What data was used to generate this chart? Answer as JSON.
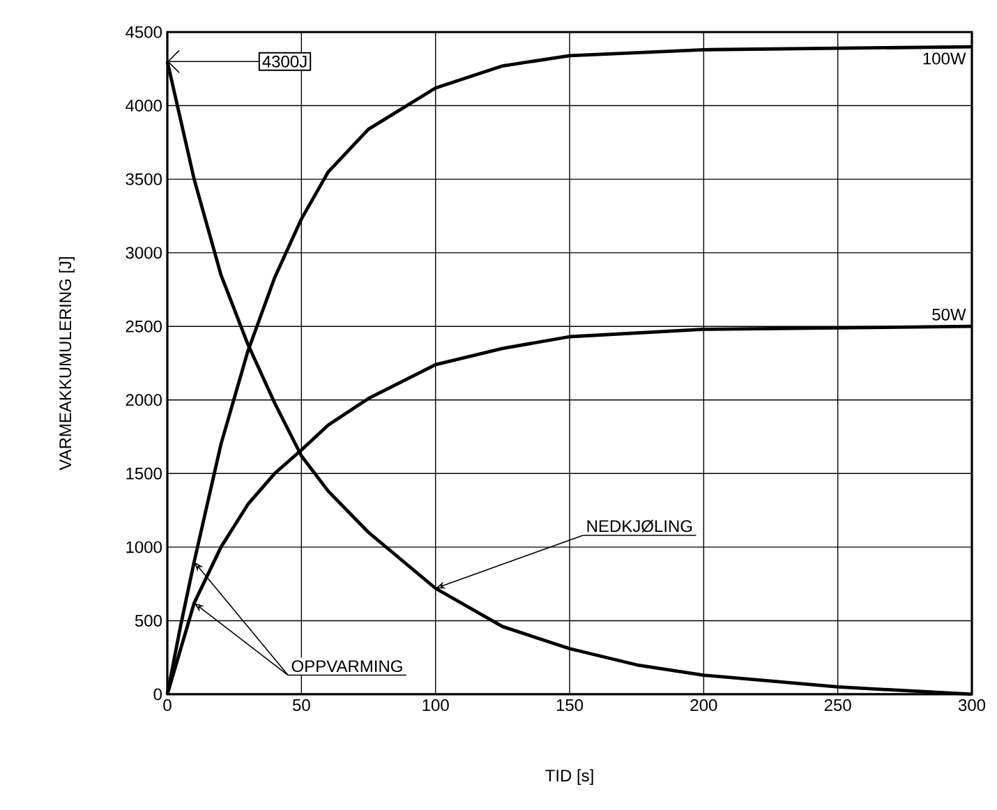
{
  "chart_data": {
    "type": "line",
    "xlabel": "TID [s]",
    "ylabel": "VARMEAKKUMULERING [J]",
    "xlim": [
      0,
      300
    ],
    "ylim": [
      0,
      4500
    ],
    "xticks": [
      0,
      50,
      100,
      150,
      200,
      250,
      300
    ],
    "yticks": [
      0,
      500,
      1000,
      1500,
      2000,
      2500,
      3000,
      3500,
      4000,
      4500
    ],
    "grid": true,
    "marker": "none",
    "line_style": "solid",
    "series": [
      {
        "name": "100W",
        "color": "#000000",
        "x": [
          0,
          5,
          10,
          20,
          30,
          40,
          50,
          60,
          75,
          100,
          125,
          150,
          200,
          250,
          300
        ],
        "values": [
          0,
          470,
          900,
          1700,
          2330,
          2830,
          3230,
          3550,
          3840,
          4120,
          4270,
          4340,
          4380,
          4390,
          4400
        ]
      },
      {
        "name": "50W",
        "color": "#000000",
        "x": [
          0,
          10,
          20,
          30,
          40,
          50,
          60,
          75,
          100,
          125,
          150,
          200,
          250,
          300
        ],
        "values": [
          0,
          620,
          1000,
          1290,
          1500,
          1660,
          1830,
          2010,
          2240,
          2350,
          2430,
          2480,
          2490,
          2500
        ]
      },
      {
        "color": "#000000",
        "x": [
          0,
          10,
          20,
          30,
          40,
          50,
          60,
          75,
          100,
          125,
          150,
          175,
          200,
          250,
          300
        ],
        "values": [
          4300,
          3500,
          2850,
          2380,
          1980,
          1620,
          1380,
          1100,
          720,
          460,
          310,
          200,
          130,
          50,
          0
        ]
      }
    ],
    "annotations": [
      {
        "text": "4300J",
        "x": 0,
        "y": 4300
      },
      {
        "text": "NEDKJØLING",
        "x": 100,
        "y": 720
      },
      {
        "text": "OPPVARMING",
        "x": 10,
        "y": 900
      }
    ]
  }
}
